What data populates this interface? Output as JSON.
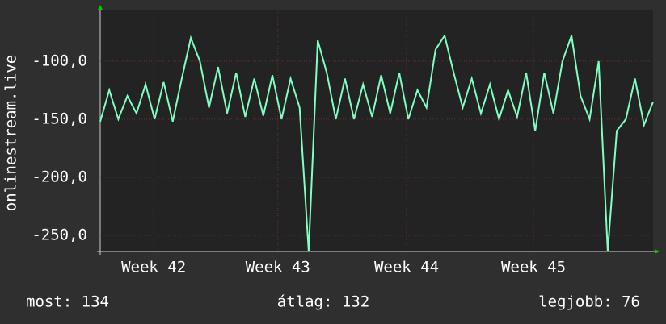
{
  "chart_data": {
    "type": "line",
    "y_label": "onlinestream.live",
    "color": "#80ffc0",
    "x": [
      0,
      0.5,
      1,
      1.5,
      2,
      2.5,
      3,
      3.5,
      4,
      4.5,
      5,
      5.5,
      6,
      6.5,
      7,
      7.5,
      8,
      8.5,
      9,
      9.5,
      10,
      10.5,
      11,
      11.5,
      12,
      12.5,
      13,
      13.5,
      14,
      14.5,
      15,
      15.5,
      16,
      16.5,
      17,
      17.5,
      18,
      18.5,
      19,
      19.5,
      20,
      20.5,
      21,
      21.5,
      22,
      22.5,
      23,
      23.5,
      24,
      24.5,
      25,
      25.5,
      26,
      26.5,
      27,
      27.5,
      28,
      28.5,
      29,
      29.5,
      30,
      30.5
    ],
    "values": [
      -152,
      -125,
      -150,
      -130,
      -145,
      -120,
      -150,
      -118,
      -152,
      -115,
      -80,
      -100,
      -140,
      -105,
      -145,
      -110,
      -148,
      -115,
      -147,
      -112,
      -150,
      -115,
      -140,
      -264,
      -82,
      -110,
      -150,
      -115,
      -150,
      -120,
      -148,
      -112,
      -145,
      -110,
      -150,
      -125,
      -140,
      -90,
      -78,
      -110,
      -140,
      -115,
      -145,
      -120,
      -150,
      -125,
      -148,
      -110,
      -160,
      -110,
      -145,
      -100,
      -78,
      -130,
      -150,
      -100,
      -264,
      -160,
      -150,
      -115,
      -155,
      -135
    ],
    "xlim": [
      0,
      30.5
    ],
    "xticks": [
      {
        "value": 2.95,
        "label": "Week 42"
      },
      {
        "value": 9.8,
        "label": "Week 43"
      },
      {
        "value": 16.9,
        "label": "Week 44"
      },
      {
        "value": 23.9,
        "label": "Week 45"
      }
    ],
    "ylim": [
      -264,
      -55.6
    ],
    "yticks": [
      {
        "value": -250,
        "label": "-250,0"
      },
      {
        "value": -200,
        "label": "-200,0"
      },
      {
        "value": -150,
        "label": "-150,0"
      },
      {
        "value": -100,
        "label": "-100,0"
      }
    ],
    "grid": true,
    "footer": [
      "most: 134",
      "átlag: 132",
      "legjobb: 76"
    ]
  }
}
